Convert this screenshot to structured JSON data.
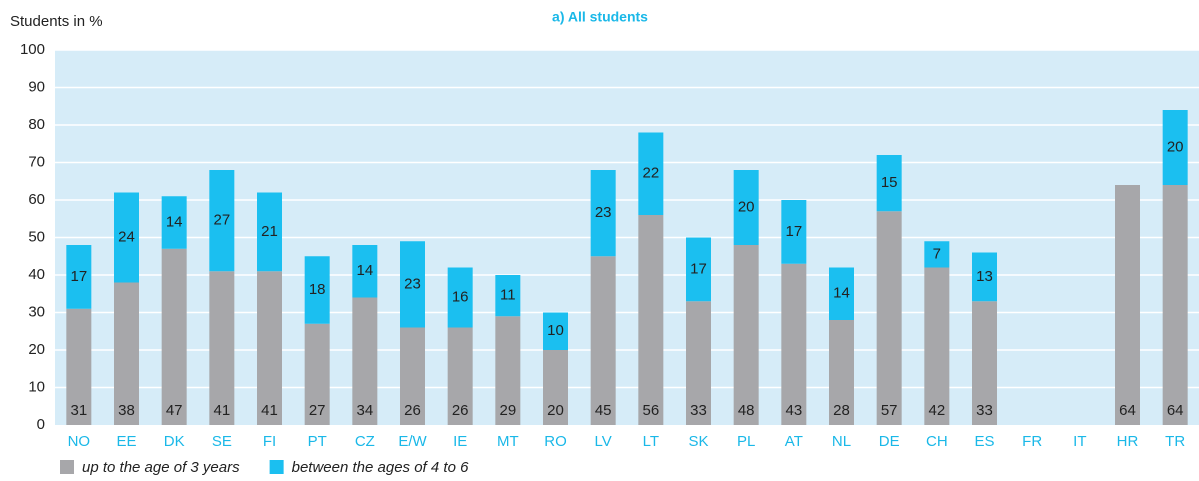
{
  "chart_data": {
    "type": "stacked_bar",
    "title": "a) All students",
    "ylabel": "Students in %",
    "categories": [
      "NO",
      "EE",
      "DK",
      "SE",
      "FI",
      "PT",
      "CZ",
      "E/W",
      "IE",
      "MT",
      "RO",
      "LV",
      "LT",
      "SK",
      "PL",
      "AT",
      "NL",
      "DE",
      "CH",
      "ES",
      "FR",
      "IT",
      "HR",
      "TR"
    ],
    "series": [
      {
        "name": "up to the age of 3 years",
        "color": "#a7a7aa",
        "values": [
          31,
          38,
          47,
          41,
          41,
          27,
          34,
          26,
          26,
          29,
          20,
          45,
          56,
          33,
          48,
          43,
          28,
          57,
          42,
          33,
          null,
          null,
          64,
          64
        ]
      },
      {
        "name": "between the ages of 4 to 6",
        "color": "#1bbff0",
        "values": [
          17,
          24,
          14,
          27,
          21,
          18,
          14,
          23,
          16,
          11,
          10,
          23,
          22,
          17,
          20,
          17,
          14,
          15,
          7,
          13,
          null,
          null,
          null,
          20
        ]
      }
    ],
    "ylim": [
      0,
      100
    ],
    "yticks": [
      0,
      10,
      20,
      30,
      40,
      50,
      60,
      70,
      80,
      90,
      100
    ],
    "grid": true
  }
}
